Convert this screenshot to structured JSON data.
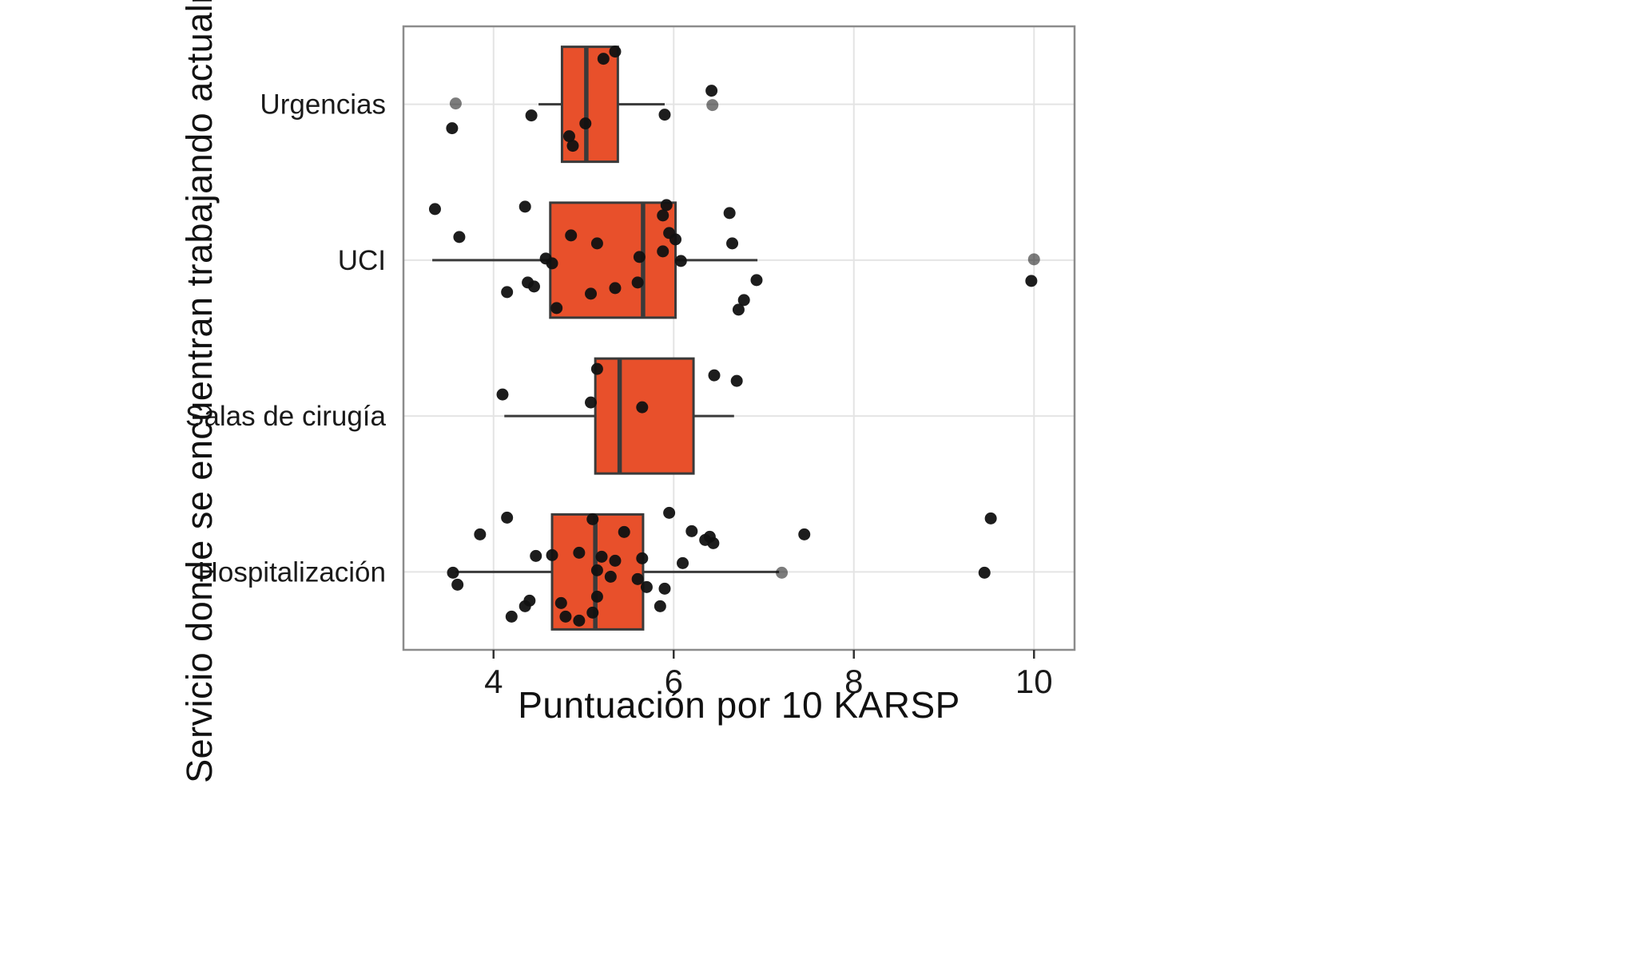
{
  "figure": {
    "xlabel": "Puntuación por 10 KARSP",
    "ylabel": "Servicio donde se encuentran trabajando actualmente"
  },
  "chart_data": {
    "type": "boxplot",
    "orientation": "horizontal",
    "title": "",
    "xlabel": "Puntuación por 10 KARSP",
    "ylabel": "Servicio donde se encuentran trabajando actualmente",
    "xlim": [
      3.0,
      10.45
    ],
    "xticks": [
      4,
      6,
      8,
      10
    ],
    "grid": true,
    "legend": "none",
    "categories": [
      "Urgencias",
      "UCI",
      "Salas de cirugía",
      "Hospitalización"
    ],
    "colors": {
      "box_fill": "#E8502B",
      "box_stroke": "#3A3A3A",
      "point": "#111111",
      "grid": "#E4E4E4",
      "panel_border": "#8C8C8C",
      "tick": "#333333",
      "text": "#1A1A1A"
    },
    "series": [
      {
        "category": "Urgencias",
        "whisker_low": 4.5,
        "q1": 4.76,
        "median": 5.03,
        "q3": 5.38,
        "whisker_high": 5.9,
        "points": [
          [
            5.22,
            -57
          ],
          [
            5.35,
            -66
          ],
          [
            6.42,
            -17
          ],
          [
            3.58,
            -1,
            0.55
          ],
          [
            6.43,
            1,
            0.55
          ],
          [
            4.42,
            14
          ],
          [
            3.54,
            30
          ],
          [
            5.9,
            13
          ],
          [
            4.84,
            40
          ],
          [
            4.88,
            52
          ],
          [
            5.02,
            24
          ]
        ]
      },
      {
        "category": "UCI",
        "whisker_low": 3.32,
        "q1": 4.63,
        "median": 5.66,
        "q3": 6.02,
        "whisker_high": 6.93,
        "points": [
          [
            3.35,
            -64
          ],
          [
            4.35,
            -67
          ],
          [
            5.92,
            -69
          ],
          [
            5.88,
            -56
          ],
          [
            6.62,
            -59
          ],
          [
            3.62,
            -29
          ],
          [
            4.86,
            -31
          ],
          [
            5.15,
            -21
          ],
          [
            5.95,
            -34
          ],
          [
            6.02,
            -26
          ],
          [
            6.65,
            -21
          ],
          [
            5.62,
            -4
          ],
          [
            5.88,
            -11
          ],
          [
            6.08,
            1
          ],
          [
            4.58,
            -2
          ],
          [
            4.65,
            4
          ],
          [
            10.0,
            -1,
            0.55
          ],
          [
            9.97,
            26
          ],
          [
            4.38,
            28
          ],
          [
            4.45,
            33
          ],
          [
            5.6,
            28
          ],
          [
            6.92,
            25
          ],
          [
            4.15,
            40
          ],
          [
            5.08,
            42
          ],
          [
            6.78,
            50
          ],
          [
            6.72,
            62
          ],
          [
            4.7,
            60
          ],
          [
            5.35,
            35
          ]
        ]
      },
      {
        "category": "Salas de cirugía",
        "whisker_low": 4.12,
        "q1": 5.13,
        "median": 5.4,
        "q3": 6.22,
        "whisker_high": 6.67,
        "points": [
          [
            5.15,
            -59
          ],
          [
            6.45,
            -51
          ],
          [
            6.7,
            -44
          ],
          [
            4.1,
            -27
          ],
          [
            5.08,
            -17
          ],
          [
            5.65,
            -11
          ]
        ]
      },
      {
        "category": "Hospitalización",
        "whisker_low": 3.58,
        "q1": 4.65,
        "median": 5.13,
        "q3": 5.66,
        "whisker_high": 7.17,
        "points": [
          [
            4.15,
            -68
          ],
          [
            5.1,
            -66
          ],
          [
            5.95,
            -74
          ],
          [
            3.85,
            -47
          ],
          [
            5.45,
            -50
          ],
          [
            6.2,
            -51
          ],
          [
            6.4,
            -44
          ],
          [
            6.44,
            -36
          ],
          [
            7.45,
            -47
          ],
          [
            9.52,
            -67
          ],
          [
            4.47,
            -20
          ],
          [
            4.65,
            -21
          ],
          [
            4.95,
            -24
          ],
          [
            5.2,
            -19
          ],
          [
            5.35,
            -14
          ],
          [
            5.65,
            -17
          ],
          [
            6.1,
            -11
          ],
          [
            3.55,
            1
          ],
          [
            5.15,
            -2
          ],
          [
            5.3,
            6
          ],
          [
            5.6,
            9
          ],
          [
            7.2,
            1,
            0.55
          ],
          [
            9.45,
            1
          ],
          [
            3.6,
            16
          ],
          [
            5.7,
            19
          ],
          [
            5.9,
            21
          ],
          [
            4.4,
            36
          ],
          [
            4.35,
            43
          ],
          [
            4.75,
            39
          ],
          [
            5.15,
            31
          ],
          [
            5.85,
            43
          ],
          [
            4.2,
            56
          ],
          [
            4.8,
            56
          ],
          [
            4.95,
            61
          ],
          [
            5.1,
            51
          ],
          [
            6.35,
            -40
          ]
        ]
      }
    ]
  }
}
